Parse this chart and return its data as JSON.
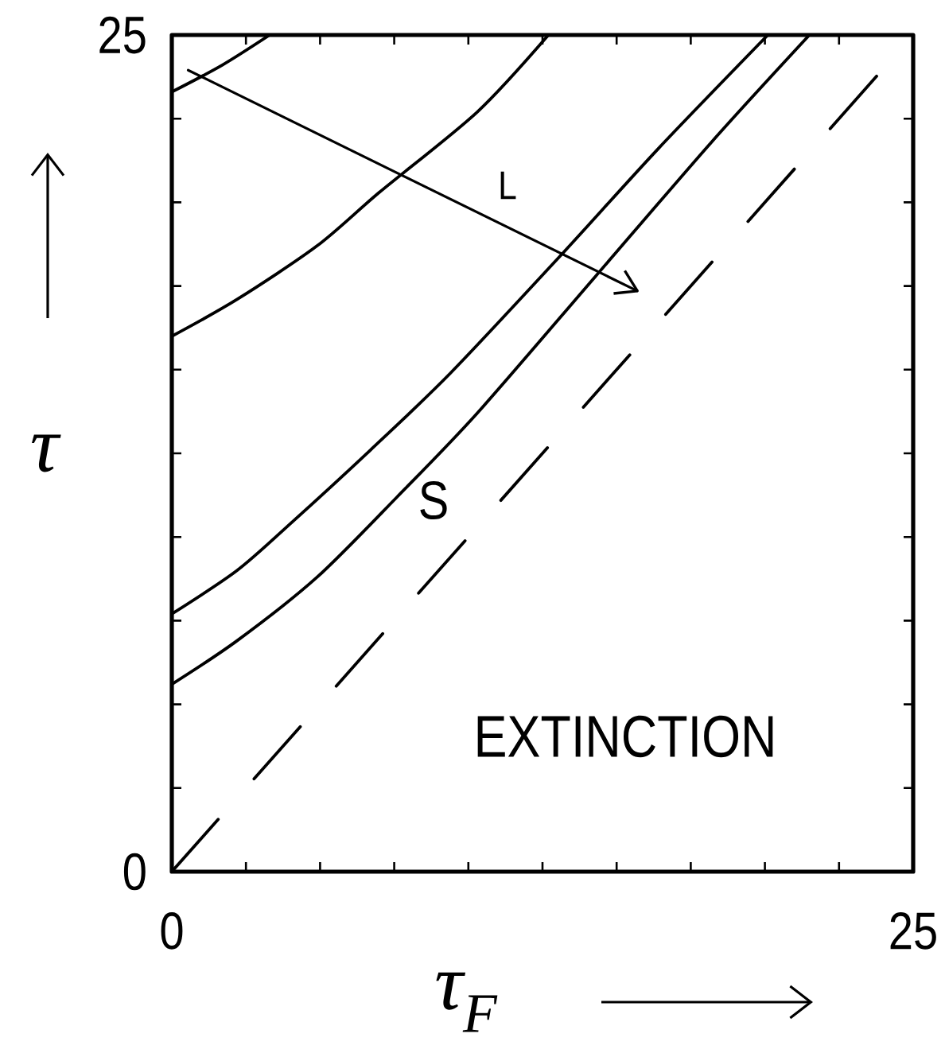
{
  "chart_data": {
    "type": "line",
    "xlabel": "τ$_{F}$",
    "ylabel": "τ",
    "line_style": "solid",
    "xlim": [
      0,
      25
    ],
    "ylim": [
      0,
      25
    ],
    "xticks": [
      0,
      {
        "value": 2.5,
        "label": null
      },
      {
        "value": 5,
        "label": null
      },
      {
        "value": 7.5,
        "label": null
      },
      {
        "value": 10,
        "label": null
      },
      {
        "value": 12.5,
        "label": null
      },
      {
        "value": 15,
        "label": null
      },
      {
        "value": 17.5,
        "label": null
      },
      {
        "value": 20,
        "label": null
      },
      {
        "value": 22.5,
        "label": null
      },
      25
    ],
    "yticks": [
      0,
      {
        "value": 2.5,
        "label": null
      },
      {
        "value": 5,
        "label": null
      },
      {
        "value": 7.5,
        "label": null
      },
      {
        "value": 10,
        "label": null
      },
      {
        "value": 12.5,
        "label": null
      },
      {
        "value": 15,
        "label": null
      },
      {
        "value": 17.5,
        "label": null
      },
      {
        "value": 20,
        "label": null
      },
      {
        "value": 22.5,
        "label": null
      },
      25
    ],
    "series": [
      {
        "color": "#000000",
        "x": [
          0,
          1.7,
          3.3
        ],
        "values": [
          23.3,
          24.1,
          25.0
        ]
      },
      {
        "color": "#000000",
        "x": [
          0,
          2.2,
          4.9,
          7.0,
          10.3,
          12.7
        ],
        "values": [
          16.0,
          17.1,
          18.7,
          20.3,
          22.7,
          25.0
        ]
      },
      {
        "color": "#000000",
        "x": [
          0,
          2.2,
          4.0,
          6.7,
          9.4,
          13.1,
          16.4,
          20.1
        ],
        "values": [
          7.7,
          9.0,
          10.4,
          12.6,
          14.9,
          18.4,
          21.6,
          25.0
        ]
      },
      {
        "color": "#000000",
        "x": [
          0,
          2.2,
          4.9,
          7.6,
          10.3,
          14.3,
          18.2,
          21.5
        ],
        "values": [
          5.6,
          6.9,
          8.8,
          11.2,
          13.7,
          17.8,
          21.8,
          25.0
        ]
      },
      {
        "color": "#000000",
        "line_style": "dashed",
        "x": [
          0,
          25
        ],
        "values": [
          0,
          25
        ]
      },
      {
        "name": "L",
        "color": "#000000",
        "x": [
          0.55,
          15.7
        ],
        "values": [
          23.95,
          17.35
        ]
      }
    ],
    "annotations": [
      "S",
      "EXTINCTION"
    ]
  }
}
